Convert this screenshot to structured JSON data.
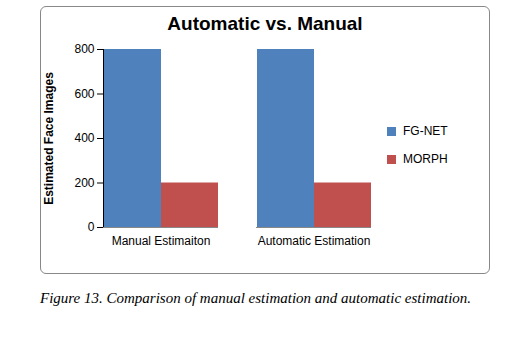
{
  "chart_data": {
    "type": "bar",
    "title": "Automatic vs. Manual",
    "y_label": "Estimated Face Images",
    "categories": [
      "Manual Estimaiton",
      "Automatic Estimation"
    ],
    "series": [
      {
        "name": "FG-NET",
        "color": "#4f81bd",
        "values": [
          800,
          800
        ]
      },
      {
        "name": "MORPH",
        "color": "#c0504d",
        "values": [
          200,
          200
        ]
      }
    ],
    "ylim": [
      0,
      800
    ],
    "yticks": [
      0,
      200,
      400,
      600,
      800
    ],
    "grid": false,
    "legend": "right",
    "caption": "Figure 13. Comparison of manual estimation and automatic estimation."
  }
}
